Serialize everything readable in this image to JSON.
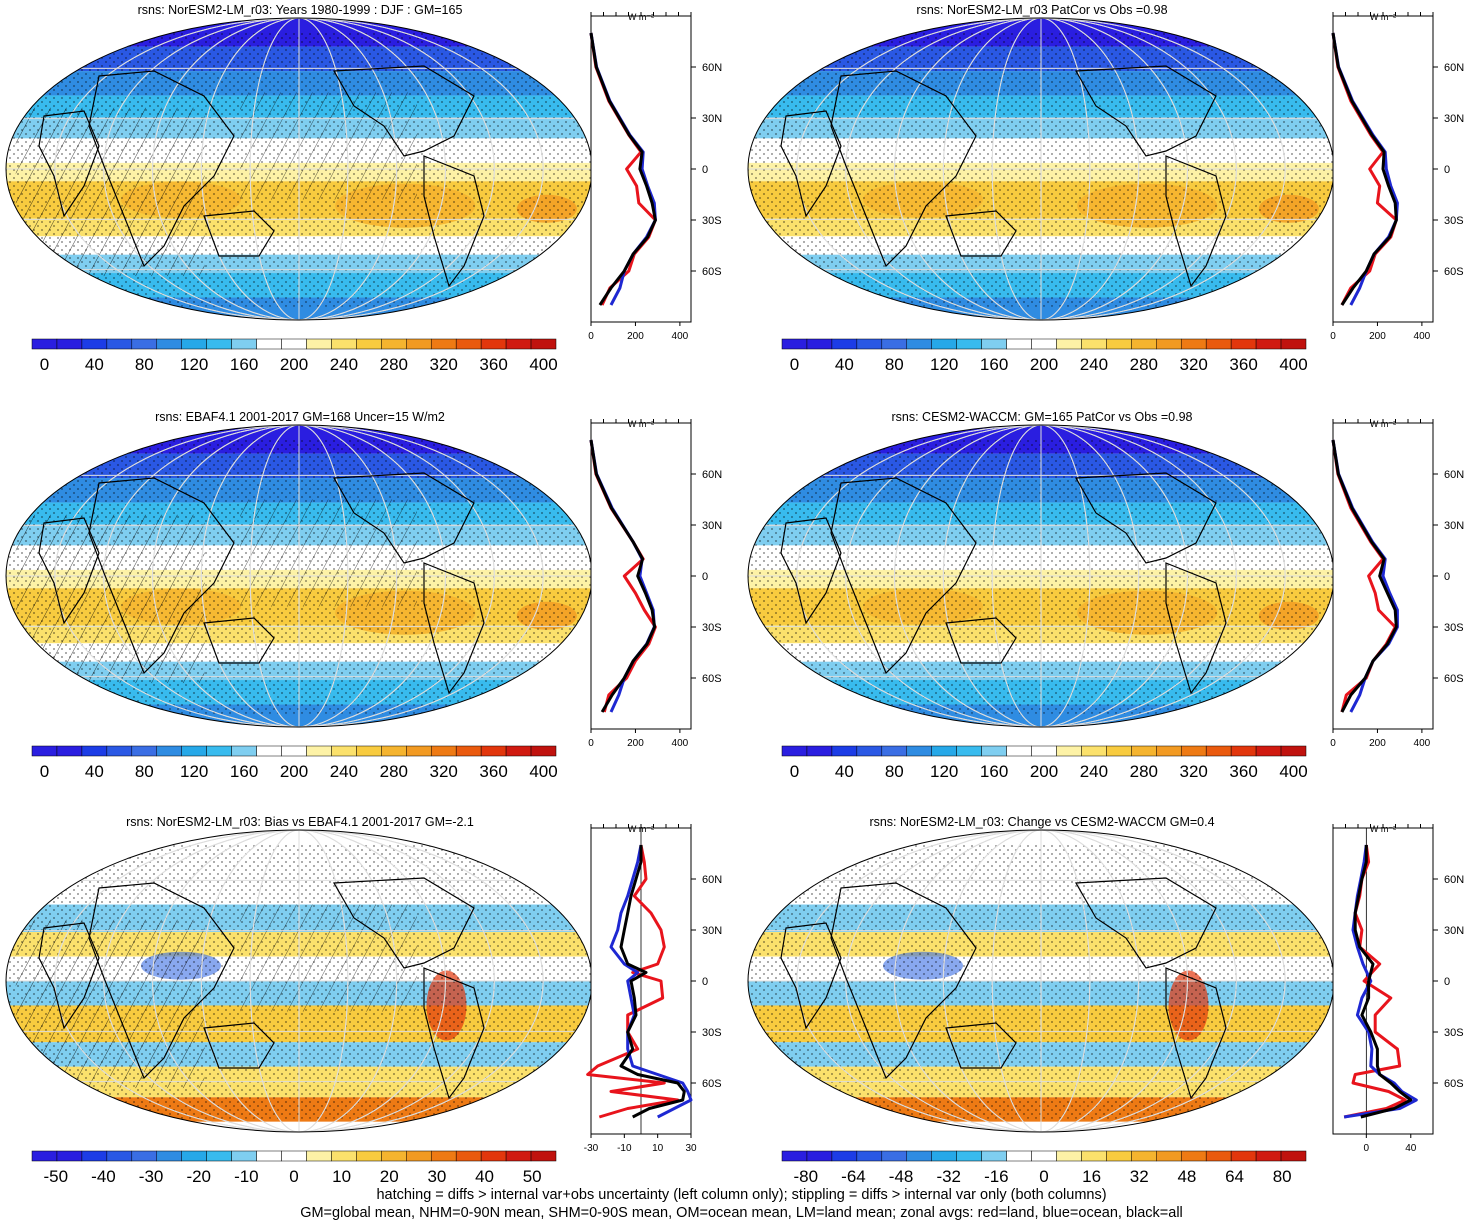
{
  "footer": {
    "line1": "hatching = diffs > internal var+obs uncertainty (left column only); stippling = diffs > internal var only (both columns)",
    "line2": "GM=global mean, NHM=0-90N mean, SHM=0-90S mean, OM=ocean mean, LM=land mean; zonal avgs: red=land, blue=ocean, black=all"
  },
  "zonal_unit": "W m⁻²",
  "lat_labels": [
    "60N",
    "30N",
    "0",
    "30S",
    "60S"
  ],
  "line_colors": {
    "land": "#e8141c",
    "ocean": "#1e28d2",
    "all": "#000000"
  },
  "chart_data": [
    {
      "type": "heatmap",
      "title": "rsns: NorESM2-LM_r03: Years 1980-1999 : DJF : GM=165",
      "colorbar_labels": [
        "0",
        "40",
        "80",
        "120",
        "160",
        "200",
        "240",
        "280",
        "320",
        "360",
        "400"
      ],
      "colorbar_range": [
        -10,
        410
      ],
      "zonal_xticks": [
        "0",
        "200",
        "400"
      ],
      "zonal_xlim": [
        0,
        450
      ],
      "zonal_series": [
        {
          "name": "land",
          "lat": [
            80,
            60,
            40,
            20,
            10,
            0,
            -10,
            -20,
            -30,
            -40,
            -50,
            -60,
            -70,
            -80
          ],
          "values": [
            0,
            22,
            80,
            170,
            225,
            160,
            205,
            215,
            290,
            260,
            195,
            170,
            85,
            50
          ]
        },
        {
          "name": "ocean",
          "lat": [
            80,
            60,
            40,
            20,
            10,
            0,
            -10,
            -20,
            -30,
            -40,
            -50,
            -60,
            -70,
            -80
          ],
          "values": [
            0,
            25,
            85,
            175,
            235,
            230,
            255,
            285,
            290,
            250,
            190,
            150,
            130,
            90
          ]
        },
        {
          "name": "all",
          "lat": [
            80,
            60,
            40,
            20,
            10,
            0,
            -10,
            -20,
            -30,
            -40,
            -50,
            -60,
            -70,
            -80
          ],
          "values": [
            0,
            24,
            83,
            172,
            230,
            220,
            250,
            275,
            290,
            255,
            190,
            150,
            90,
            40
          ]
        }
      ]
    },
    {
      "type": "heatmap",
      "title": "rsns: NorESM2-LM_r03 PatCor vs Obs =0.98",
      "colorbar_labels": [
        "0",
        "40",
        "80",
        "120",
        "160",
        "200",
        "240",
        "280",
        "320",
        "360",
        "400"
      ],
      "colorbar_range": [
        -10,
        410
      ],
      "zonal_xticks": [
        "0",
        "200",
        "400"
      ],
      "zonal_xlim": [
        0,
        450
      ],
      "zonal_series": [
        {
          "name": "land",
          "lat": [
            80,
            60,
            40,
            20,
            10,
            0,
            -10,
            -20,
            -30,
            -40,
            -50,
            -60,
            -70,
            -80
          ],
          "values": [
            0,
            22,
            80,
            170,
            225,
            165,
            210,
            200,
            285,
            260,
            190,
            165,
            80,
            40
          ]
        },
        {
          "name": "ocean",
          "lat": [
            80,
            60,
            40,
            20,
            10,
            0,
            -10,
            -20,
            -30,
            -40,
            -50,
            -60,
            -70,
            -80
          ],
          "values": [
            0,
            25,
            88,
            180,
            235,
            240,
            260,
            290,
            285,
            250,
            185,
            150,
            120,
            80
          ]
        },
        {
          "name": "all",
          "lat": [
            80,
            60,
            40,
            20,
            10,
            0,
            -10,
            -20,
            -30,
            -40,
            -50,
            -60,
            -70,
            -80
          ],
          "values": [
            0,
            24,
            85,
            175,
            230,
            225,
            250,
            280,
            285,
            255,
            185,
            150,
            90,
            40
          ]
        }
      ]
    },
    {
      "type": "heatmap",
      "title": "rsns: EBAF4.1 2001-2017 GM=168 Uncer=15 W/m2",
      "colorbar_labels": [
        "0",
        "40",
        "80",
        "120",
        "160",
        "200",
        "240",
        "280",
        "320",
        "360",
        "400"
      ],
      "colorbar_range": [
        -10,
        410
      ],
      "zonal_xticks": [
        "0",
        "200",
        "400"
      ],
      "zonal_xlim": [
        0,
        450
      ],
      "zonal_series": [
        {
          "name": "land",
          "lat": [
            80,
            60,
            40,
            20,
            10,
            0,
            -10,
            -20,
            -30,
            -40,
            -50,
            -60,
            -70,
            -80
          ],
          "values": [
            0,
            22,
            90,
            190,
            235,
            150,
            200,
            240,
            290,
            260,
            200,
            160,
            80,
            60
          ]
        },
        {
          "name": "ocean",
          "lat": [
            80,
            60,
            40,
            20,
            10,
            0,
            -10,
            -20,
            -30,
            -40,
            -50,
            -60,
            -70,
            -80
          ],
          "values": [
            0,
            25,
            95,
            190,
            230,
            220,
            250,
            280,
            285,
            250,
            190,
            150,
            125,
            90
          ]
        },
        {
          "name": "all",
          "lat": [
            80,
            60,
            40,
            20,
            10,
            0,
            -10,
            -20,
            -30,
            -40,
            -50,
            -60,
            -70,
            -80
          ],
          "values": [
            0,
            24,
            92,
            190,
            232,
            210,
            245,
            275,
            286,
            252,
            190,
            150,
            95,
            50
          ]
        }
      ]
    },
    {
      "type": "heatmap",
      "title": "rsns: CESM2-WACCM: GM=165 PatCor vs Obs =0.98",
      "colorbar_labels": [
        "0",
        "40",
        "80",
        "120",
        "160",
        "200",
        "240",
        "280",
        "320",
        "360",
        "400"
      ],
      "colorbar_range": [
        -10,
        410
      ],
      "zonal_xticks": [
        "0",
        "200",
        "400"
      ],
      "zonal_xlim": [
        0,
        450
      ],
      "zonal_series": [
        {
          "name": "land",
          "lat": [
            80,
            60,
            40,
            20,
            10,
            0,
            -10,
            -20,
            -30,
            -40,
            -50,
            -60,
            -70,
            -80
          ],
          "values": [
            0,
            22,
            80,
            170,
            225,
            160,
            190,
            205,
            280,
            240,
            180,
            150,
            60,
            40
          ]
        },
        {
          "name": "ocean",
          "lat": [
            80,
            60,
            40,
            20,
            10,
            0,
            -10,
            -20,
            -30,
            -40,
            -50,
            -60,
            -70,
            -80
          ],
          "values": [
            0,
            25,
            88,
            178,
            235,
            225,
            255,
            290,
            290,
            250,
            180,
            145,
            120,
            80
          ]
        },
        {
          "name": "all",
          "lat": [
            80,
            60,
            40,
            20,
            10,
            0,
            -10,
            -20,
            -30,
            -40,
            -50,
            -60,
            -70,
            -80
          ],
          "values": [
            0,
            24,
            85,
            174,
            230,
            210,
            245,
            280,
            285,
            245,
            180,
            145,
            80,
            40
          ]
        }
      ]
    },
    {
      "type": "heatmap",
      "title": "rsns: NorESM2-LM_r03: Bias vs EBAF4.1 2001-2017 GM=-2.1",
      "colorbar_labels": [
        "-50",
        "-40",
        "-30",
        "-20",
        "-10",
        "0",
        "10",
        "20",
        "30",
        "40",
        "50"
      ],
      "colorbar_range": [
        -55,
        55
      ],
      "zonal_xticks": [
        "-30",
        "-10",
        "10",
        "30"
      ],
      "zonal_xlim": [
        -30,
        30
      ],
      "zonal_series": [
        {
          "name": "land",
          "lat": [
            80,
            70,
            60,
            50,
            40,
            30,
            20,
            10,
            5,
            0,
            -10,
            -20,
            -30,
            -40,
            -50,
            -55,
            -60,
            -65,
            -70,
            -75,
            -80
          ],
          "values": [
            0,
            2,
            3,
            -4,
            6,
            12,
            14,
            10,
            -5,
            12,
            13,
            -8,
            -8,
            -2,
            -26,
            -32,
            14,
            -18,
            22,
            -8,
            -25
          ]
        },
        {
          "name": "ocean",
          "lat": [
            80,
            70,
            60,
            50,
            40,
            30,
            20,
            10,
            5,
            0,
            -10,
            -20,
            -30,
            -40,
            -50,
            -55,
            -60,
            -65,
            -70,
            -75,
            -80
          ],
          "values": [
            0,
            -2,
            -5,
            -8,
            -12,
            -14,
            -18,
            -10,
            -2,
            -8,
            -6,
            -4,
            -8,
            -8,
            -5,
            10,
            25,
            28,
            30,
            20,
            10
          ]
        },
        {
          "name": "all",
          "lat": [
            80,
            70,
            60,
            50,
            40,
            30,
            20,
            10,
            5,
            0,
            -10,
            -20,
            -30,
            -40,
            -50,
            -55,
            -60,
            -65,
            -70,
            -75,
            -80
          ],
          "values": [
            0,
            0,
            -3,
            -6,
            -8,
            -10,
            -12,
            -8,
            3,
            -6,
            -4,
            -3,
            -8,
            -5,
            -12,
            -2,
            22,
            26,
            25,
            5,
            -5
          ]
        }
      ]
    },
    {
      "type": "heatmap",
      "title": "rsns: NorESM2-LM_r03: Change vs CESM2-WACCM GM=0.4",
      "colorbar_labels": [
        "-80",
        "-64",
        "-48",
        "-32",
        "-16",
        "0",
        "16",
        "32",
        "48",
        "64",
        "80"
      ],
      "colorbar_range": [
        -88,
        88
      ],
      "zonal_xticks": [
        "0",
        "40"
      ],
      "zonal_xlim": [
        -30,
        60
      ],
      "zonal_series": [
        {
          "name": "land",
          "lat": [
            80,
            70,
            60,
            50,
            40,
            30,
            20,
            10,
            0,
            -10,
            -20,
            -30,
            -40,
            -50,
            -55,
            -60,
            -65,
            -70,
            -75,
            -80
          ],
          "values": [
            0,
            2,
            -4,
            -6,
            -10,
            -4,
            -6,
            12,
            -2,
            22,
            8,
            8,
            28,
            30,
            -10,
            -12,
            20,
            35,
            18,
            -20
          ]
        },
        {
          "name": "ocean",
          "lat": [
            80,
            70,
            60,
            50,
            40,
            30,
            20,
            10,
            0,
            -10,
            -20,
            -30,
            -40,
            -50,
            -55,
            -60,
            -65,
            -70,
            -75,
            -80
          ],
          "values": [
            0,
            -2,
            -5,
            -8,
            -10,
            -12,
            -8,
            -3,
            4,
            -4,
            -8,
            2,
            5,
            4,
            12,
            25,
            32,
            45,
            30,
            -20
          ]
        },
        {
          "name": "all",
          "lat": [
            80,
            70,
            60,
            50,
            40,
            30,
            20,
            10,
            0,
            -10,
            -20,
            -30,
            -40,
            -50,
            -55,
            -60,
            -65,
            -70,
            -75,
            -80
          ],
          "values": [
            0,
            0,
            -4,
            -7,
            -10,
            -10,
            -6,
            6,
            2,
            2,
            -4,
            4,
            10,
            10,
            12,
            22,
            30,
            40,
            25,
            -5
          ]
        }
      ]
    }
  ]
}
